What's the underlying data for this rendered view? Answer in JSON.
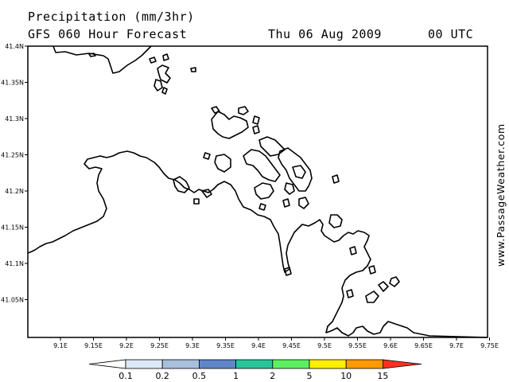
{
  "header": {
    "title": "Precipitation (mm/3hr)",
    "subtitle": "GFS 060 Hour Forecast",
    "date": "Thu 06 Aug 2009",
    "time": "00 UTC"
  },
  "credit": "www.PassageWeather.com",
  "lat_ticks": [
    "41.4N",
    "41.35N",
    "41.3N",
    "41.25N",
    "41.2N",
    "41.15N",
    "41.1N",
    "41.05N"
  ],
  "lon_ticks": [
    "9.1E",
    "9.15E",
    "9.2E",
    "9.25E",
    "9.3E",
    "9.35E",
    "9.4E",
    "9.45E",
    "9.5E",
    "9.55E",
    "9.6E",
    "9.65E",
    "9.7E",
    "9.75E"
  ],
  "legend": {
    "labels": [
      "0.1",
      "0.2",
      "0.5",
      "1",
      "2",
      "5",
      "10",
      "15"
    ],
    "colors": [
      "#ffffff",
      "#dce8f6",
      "#a8c0dc",
      "#5f86c8",
      "#28c49a",
      "#5cf060",
      "#ffee00",
      "#ff9a00",
      "#ff3020"
    ]
  }
}
